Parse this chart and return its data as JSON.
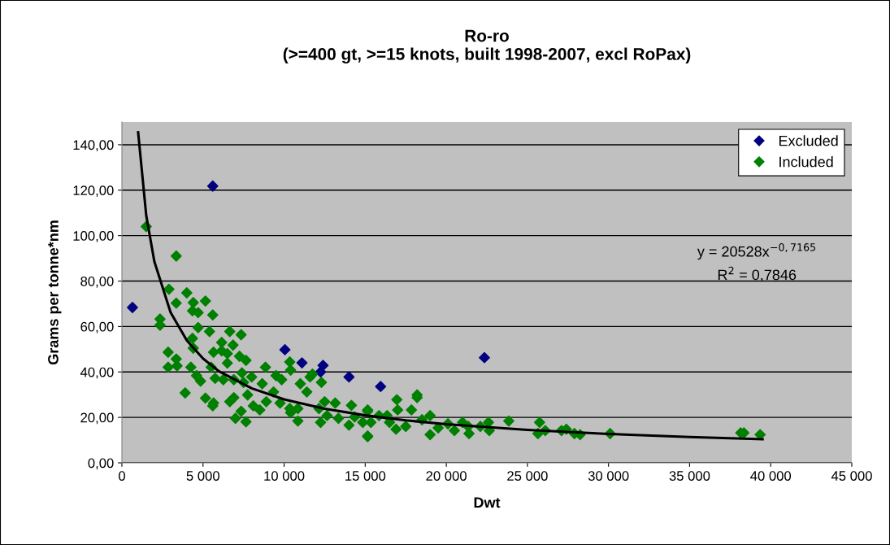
{
  "chart_data": {
    "type": "scatter",
    "title": "Ro-ro\n(>=400 gt, >=15 knots, built 1998-2007, excl RoPax)",
    "xlabel": "Dwt",
    "ylabel": "Grams per tonne*nm",
    "xlim": [
      0,
      45000
    ],
    "ylim": [
      0,
      150
    ],
    "xticks": [
      {
        "value": 0,
        "label": "0"
      },
      {
        "value": 5000,
        "label": "5 000"
      },
      {
        "value": 10000,
        "label": "10 000"
      },
      {
        "value": 15000,
        "label": "15 000"
      },
      {
        "value": 20000,
        "label": "20 000"
      },
      {
        "value": 25000,
        "label": "25 000"
      },
      {
        "value": 30000,
        "label": "30 000"
      },
      {
        "value": 35000,
        "label": "35 000"
      },
      {
        "value": 40000,
        "label": "40 000"
      },
      {
        "value": 45000,
        "label": "45 000"
      }
    ],
    "yticks": [
      {
        "value": 0,
        "label": "0,00"
      },
      {
        "value": 20,
        "label": "20,00"
      },
      {
        "value": 40,
        "label": "40,00"
      },
      {
        "value": 60,
        "label": "60,00"
      },
      {
        "value": 80,
        "label": "80,00"
      },
      {
        "value": 100,
        "label": "100,00"
      },
      {
        "value": 120,
        "label": "120,00"
      },
      {
        "value": 140,
        "label": "140,00"
      }
    ],
    "grid": "y",
    "legend": "top right",
    "marker": "diamond",
    "annotations": [
      "y = 20528x$^{−0,7165}$",
      "R$^{2}$ = 0,7846"
    ],
    "series": [
      {
        "name": "Excluded",
        "color": "#000080",
        "x": [
          650,
          5600,
          10050,
          11100,
          12400,
          12250,
          14000,
          15950,
          22350
        ],
        "values": [
          68.4,
          121.8,
          49.8,
          44.0,
          42.9,
          40.0,
          37.8,
          33.6,
          46.3
        ]
      },
      {
        "name": "Included",
        "color": "#008000",
        "x": [
          1500,
          3350,
          2900,
          4000,
          3350,
          4400,
          5150,
          4350,
          4700,
          5600,
          2350,
          2350,
          4700,
          5400,
          6650,
          7350,
          4350,
          4400,
          6150,
          6850,
          6150,
          5650,
          6500,
          2850,
          7250,
          7650,
          3350,
          2850,
          3400,
          4250,
          5500,
          6500,
          4600,
          4850,
          5750,
          6250,
          6900,
          7400,
          8000,
          8850,
          7500,
          3900,
          5150,
          5650,
          5600,
          6650,
          6900,
          7000,
          7650,
          7350,
          7750,
          8100,
          8500,
          8650,
          9350,
          9500,
          9850,
          8900,
          9750,
          10350,
          10400,
          11000,
          11400,
          11600,
          11750,
          12300,
          10350,
          10850,
          10850,
          10400,
          12500,
          12150,
          12650,
          12250,
          13150,
          13350,
          14150,
          14000,
          14350,
          15150,
          15150,
          14850,
          15350,
          15150,
          15150,
          15850,
          16350,
          16950,
          17000,
          17850,
          18200,
          18200,
          16900,
          17500,
          16500,
          18500,
          19000,
          19000,
          19500,
          20100,
          20500,
          21000,
          21400,
          21350,
          22100,
          22600,
          22650,
          23850,
          25750,
          25650,
          26100,
          27100,
          27400,
          27900,
          28250,
          30100,
          38150,
          38350,
          39350
        ],
        "values": [
          104.0,
          91.0,
          76.4,
          74.8,
          70.3,
          70.5,
          71.2,
          66.9,
          66.1,
          65.1,
          63.3,
          60.6,
          59.5,
          57.8,
          57.8,
          56.4,
          54.8,
          50.5,
          53.0,
          51.8,
          49.3,
          48.7,
          48.1,
          48.7,
          46.9,
          45.1,
          45.7,
          42.1,
          42.7,
          42.1,
          42.1,
          43.9,
          38.4,
          36.0,
          37.2,
          36.6,
          36.6,
          39.6,
          37.8,
          42.1,
          35.4,
          30.8,
          28.5,
          26.3,
          25.1,
          26.9,
          28.7,
          19.6,
          18.1,
          22.7,
          29.9,
          25.1,
          23.3,
          34.8,
          31.2,
          38.4,
          36.6,
          26.9,
          26.3,
          44.4,
          40.8,
          34.8,
          31.2,
          37.8,
          39.0,
          35.4,
          23.9,
          23.9,
          18.4,
          22.1,
          26.9,
          23.9,
          20.8,
          17.8,
          26.3,
          19.6,
          25.3,
          16.6,
          20.2,
          23.3,
          11.5,
          17.8,
          17.8,
          22.7,
          11.8,
          20.8,
          20.8,
          27.8,
          23.3,
          23.3,
          29.9,
          28.7,
          14.8,
          16.0,
          17.8,
          19.0,
          20.8,
          12.4,
          15.4,
          17.2,
          14.2,
          17.8,
          12.9,
          16.0,
          16.0,
          17.8,
          14.2,
          18.4,
          17.8,
          12.9,
          14.2,
          14.2,
          14.8,
          12.9,
          12.4,
          12.9,
          13.2,
          13.2,
          12.4
        ]
      },
      {
        "type": "line",
        "color": "#000000",
        "marker": "none",
        "x": [
          1000,
          1500,
          2000,
          3000,
          4000,
          5000,
          6000,
          8000,
          10000,
          12500,
          15000,
          17500,
          20000,
          25000,
          30000,
          35000,
          39500
        ],
        "values": [
          145.5,
          108.8,
          88.6,
          66.2,
          53.9,
          45.9,
          40.2,
          32.8,
          27.9,
          23.8,
          20.9,
          18.7,
          17.0,
          14.5,
          12.7,
          11.4,
          10.4
        ]
      }
    ]
  }
}
